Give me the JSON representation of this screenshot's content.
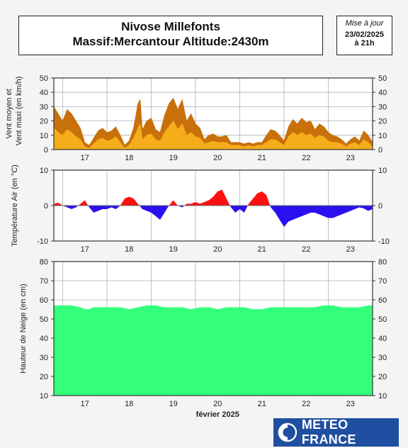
{
  "header": {
    "title_line1": "Nivose Millefonts",
    "title_line2": "Massif:Mercantour Altitude:2430m",
    "update_label": "Mise à jour",
    "update_date": "23/02/2025",
    "update_time": "à 21h"
  },
  "logo": {
    "text": "METEO FRANCE",
    "icon": "meteo-france-logo-icon"
  },
  "colors": {
    "wind_max": "#c8700a",
    "wind_mean": "#f6ad1c",
    "temp_pos": "#ff1010",
    "temp_neg": "#2a10f0",
    "snow": "#33ff7a"
  },
  "chart_data": [
    {
      "type": "area",
      "ylabel_line1": "Vent moyen et",
      "ylabel_line2": "Vent maxi (en km/h)",
      "ylim": [
        0,
        50
      ],
      "yticks": [
        0,
        10,
        20,
        30,
        40,
        50
      ],
      "xlim": [
        16.3,
        23.5
      ],
      "xticks": [
        17,
        18,
        19,
        20,
        21,
        22,
        23
      ],
      "grid": true,
      "series": [
        {
          "role": "wind_max",
          "x": [
            16.3,
            16.4,
            16.5,
            16.6,
            16.7,
            16.8,
            16.9,
            17.0,
            17.1,
            17.2,
            17.3,
            17.4,
            17.5,
            17.6,
            17.7,
            17.8,
            17.9,
            18.0,
            18.1,
            18.2,
            18.25,
            18.3,
            18.4,
            18.5,
            18.6,
            18.7,
            18.8,
            18.9,
            19.0,
            19.1,
            19.2,
            19.3,
            19.4,
            19.5,
            19.6,
            19.7,
            19.8,
            19.9,
            20.0,
            20.1,
            20.2,
            20.3,
            20.4,
            20.5,
            20.6,
            20.7,
            20.8,
            20.9,
            21.0,
            21.1,
            21.2,
            21.3,
            21.4,
            21.5,
            21.6,
            21.7,
            21.8,
            21.9,
            22.0,
            22.1,
            22.2,
            22.3,
            22.4,
            22.5,
            22.6,
            22.7,
            22.8,
            22.9,
            23.0,
            23.1,
            23.2,
            23.3,
            23.4,
            23.5
          ],
          "values": [
            30,
            25,
            20,
            28,
            25,
            20,
            15,
            5,
            3,
            8,
            13,
            15,
            12,
            13,
            16,
            10,
            3,
            6,
            15,
            32,
            35,
            14,
            20,
            22,
            14,
            12,
            24,
            32,
            36,
            28,
            35,
            20,
            25,
            18,
            15,
            7,
            10,
            11,
            9,
            9,
            10,
            5,
            5,
            5,
            4,
            5,
            4,
            5,
            5,
            10,
            14,
            13,
            10,
            6,
            16,
            21,
            18,
            22,
            19,
            20,
            14,
            18,
            16,
            12,
            10,
            9,
            7,
            4,
            7,
            9,
            6,
            13,
            10,
            5
          ]
        },
        {
          "role": "wind_mean",
          "x": [
            16.3,
            16.4,
            16.5,
            16.6,
            16.7,
            16.8,
            16.9,
            17.0,
            17.1,
            17.2,
            17.3,
            17.4,
            17.5,
            17.6,
            17.7,
            17.8,
            17.9,
            18.0,
            18.1,
            18.2,
            18.25,
            18.3,
            18.4,
            18.5,
            18.6,
            18.7,
            18.8,
            18.9,
            19.0,
            19.1,
            19.2,
            19.3,
            19.4,
            19.5,
            19.6,
            19.7,
            19.8,
            19.9,
            20.0,
            20.1,
            20.2,
            20.3,
            20.4,
            20.5,
            20.6,
            20.7,
            20.8,
            20.9,
            21.0,
            21.1,
            21.2,
            21.3,
            21.4,
            21.5,
            21.6,
            21.7,
            21.8,
            21.9,
            22.0,
            22.1,
            22.2,
            22.3,
            22.4,
            22.5,
            22.6,
            22.7,
            22.8,
            22.9,
            23.0,
            23.1,
            23.2,
            23.3,
            23.4,
            23.5
          ],
          "values": [
            15,
            12,
            10,
            14,
            12,
            9,
            7,
            2,
            1,
            4,
            7,
            8,
            6,
            7,
            9,
            5,
            1,
            3,
            8,
            15,
            18,
            7,
            10,
            11,
            7,
            6,
            12,
            16,
            20,
            14,
            18,
            10,
            12,
            9,
            8,
            4,
            5,
            6,
            5,
            5,
            5,
            3,
            3,
            3,
            2,
            3,
            2,
            3,
            3,
            5,
            7,
            7,
            5,
            3,
            9,
            12,
            10,
            12,
            10,
            11,
            8,
            10,
            9,
            6,
            5,
            5,
            4,
            2,
            4,
            5,
            3,
            7,
            5,
            2
          ]
        }
      ]
    },
    {
      "type": "area",
      "ylabel": "Température Air (en °C)",
      "ylim": [
        -10,
        10
      ],
      "yticks": [
        -10,
        0,
        10
      ],
      "xlim": [
        16.3,
        23.5
      ],
      "xticks": [
        17,
        18,
        19,
        20,
        21,
        22,
        23
      ],
      "grid": true,
      "series": [
        {
          "role": "temperature",
          "x": [
            16.3,
            16.4,
            16.5,
            16.6,
            16.7,
            16.8,
            16.9,
            17.0,
            17.1,
            17.2,
            17.3,
            17.4,
            17.5,
            17.6,
            17.7,
            17.8,
            17.9,
            18.0,
            18.1,
            18.2,
            18.3,
            18.4,
            18.5,
            18.6,
            18.7,
            18.8,
            18.9,
            19.0,
            19.1,
            19.2,
            19.3,
            19.4,
            19.5,
            19.6,
            19.7,
            19.8,
            19.9,
            20.0,
            20.1,
            20.2,
            20.3,
            20.4,
            20.5,
            20.6,
            20.7,
            20.8,
            20.9,
            21.0,
            21.1,
            21.2,
            21.3,
            21.4,
            21.5,
            21.6,
            21.7,
            21.8,
            21.9,
            22.0,
            22.1,
            22.2,
            22.3,
            22.4,
            22.5,
            22.6,
            22.7,
            22.8,
            22.9,
            23.0,
            23.1,
            23.2,
            23.3,
            23.4,
            23.5
          ],
          "values": [
            0.5,
            0.8,
            0,
            -0.5,
            -1,
            -0.5,
            0.5,
            1.5,
            -0.5,
            -2,
            -1.5,
            -1,
            -1,
            -0.5,
            -1,
            0,
            2,
            2.5,
            2,
            0.5,
            -1,
            -1.5,
            -2,
            -3,
            -4,
            -2,
            0,
            1.5,
            0,
            -0.5,
            0.5,
            0.5,
            1,
            0.5,
            1,
            1.5,
            2.5,
            4,
            4.5,
            2,
            -0.5,
            -2,
            -1,
            -2,
            0.5,
            2,
            3.5,
            4,
            3,
            -0.5,
            -2,
            -4,
            -6,
            -4.5,
            -4,
            -3.5,
            -3,
            -2.5,
            -2,
            -2,
            -2.5,
            -3,
            -3.5,
            -3.5,
            -3,
            -2.5,
            -2,
            -1.5,
            -1,
            -0.5,
            -0.8,
            -1.5,
            -1
          ]
        }
      ]
    },
    {
      "type": "area",
      "ylabel": "Hauteur de Neige (en cm)",
      "xlabel": "février 2025",
      "ylim": [
        10,
        80
      ],
      "yticks": [
        10,
        20,
        30,
        40,
        50,
        60,
        70,
        80
      ],
      "xlim": [
        16.3,
        23.5
      ],
      "xticks": [
        17,
        18,
        19,
        20,
        21,
        22,
        23
      ],
      "grid": true,
      "series": [
        {
          "role": "snow_depth",
          "x": [
            16.3,
            16.5,
            16.7,
            16.9,
            17.0,
            17.1,
            17.2,
            17.4,
            17.6,
            17.8,
            18.0,
            18.2,
            18.4,
            18.6,
            18.8,
            19.0,
            19.2,
            19.4,
            19.6,
            19.8,
            20.0,
            20.2,
            20.4,
            20.6,
            20.8,
            21.0,
            21.2,
            21.4,
            21.6,
            21.8,
            22.0,
            22.2,
            22.4,
            22.6,
            22.8,
            23.0,
            23.2,
            23.4,
            23.5
          ],
          "values": [
            57,
            57,
            57,
            56,
            55,
            55,
            56,
            56,
            56,
            56,
            55,
            56,
            57,
            57,
            56,
            56,
            56,
            55,
            56,
            56,
            55,
            56,
            56,
            56,
            55,
            55,
            56,
            56,
            56,
            56,
            56,
            56,
            57,
            57,
            56,
            56,
            56,
            57,
            57
          ]
        }
      ]
    }
  ]
}
